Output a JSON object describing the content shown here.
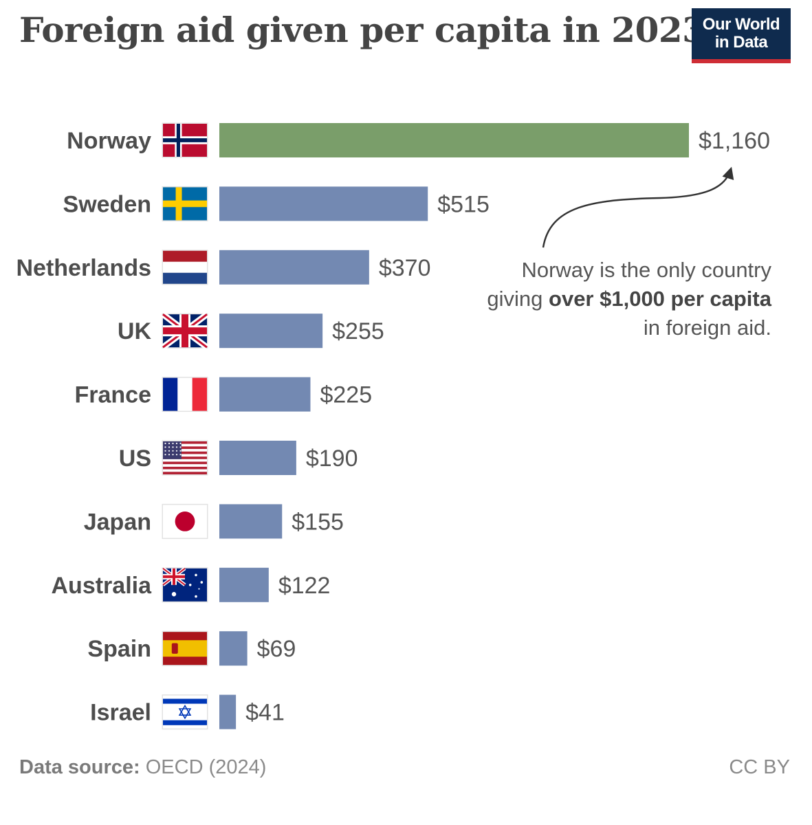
{
  "title": "Foreign aid given per capita in 2023",
  "logo": {
    "line1": "Our World",
    "line2": "in Data"
  },
  "annotation": {
    "line1": "Norway is the only country",
    "line2_pre": "giving ",
    "line2_bold": "over $1,000 per capita",
    "line3": "in foreign aid."
  },
  "footer": {
    "source_label": "Data source:",
    "source_value": "OECD (2024)",
    "license": "CC BY"
  },
  "colors": {
    "highlight": "#7a9e6a",
    "bar": "#7389b2",
    "text": "#4d4d4d"
  },
  "chart_data": {
    "type": "bar",
    "orientation": "horizontal",
    "title": "Foreign aid given per capita in 2023",
    "categories": [
      "Norway",
      "Sweden",
      "Netherlands",
      "UK",
      "France",
      "US",
      "Japan",
      "Australia",
      "Spain",
      "Israel"
    ],
    "values": [
      1160,
      515,
      370,
      255,
      225,
      190,
      155,
      122,
      69,
      41
    ],
    "value_labels": [
      "$1,160",
      "$515",
      "$370",
      "$255",
      "$225",
      "$190",
      "$155",
      "$122",
      "$69",
      "$41"
    ],
    "flag_icons": [
      "norway-flag-icon",
      "sweden-flag-icon",
      "netherlands-flag-icon",
      "uk-flag-icon",
      "france-flag-icon",
      "us-flag-icon",
      "japan-flag-icon",
      "australia-flag-icon",
      "spain-flag-icon",
      "israel-flag-icon"
    ],
    "highlight_category": "Norway",
    "xlim": [
      0,
      1160
    ],
    "grid": false
  }
}
